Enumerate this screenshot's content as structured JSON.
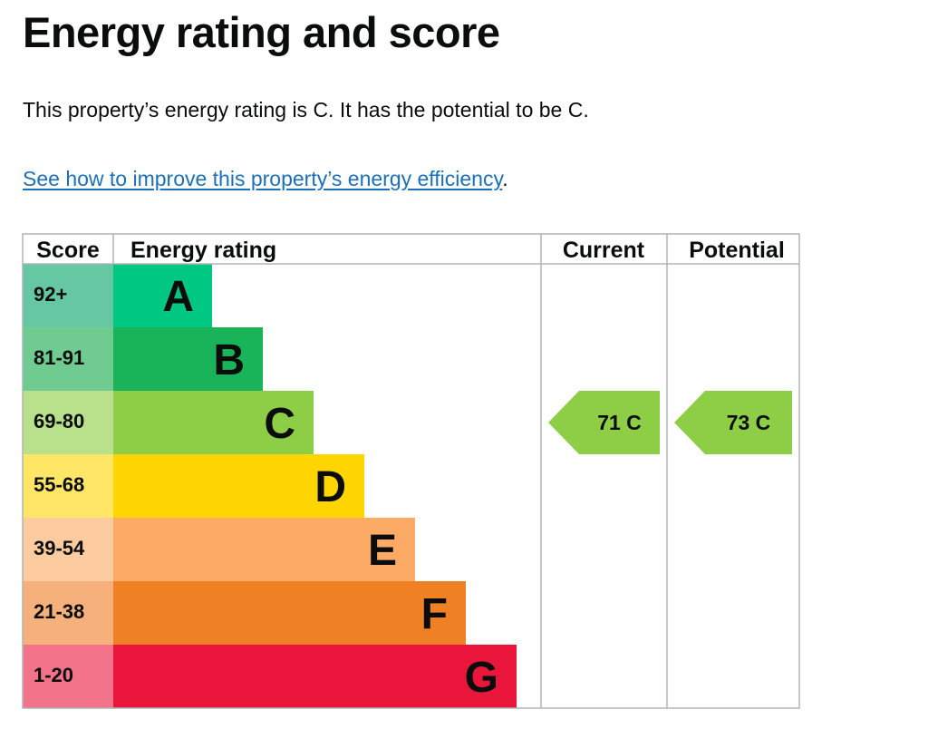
{
  "page": {
    "title": "Energy rating and score",
    "summary": "This property’s energy rating is C. It has the potential to be C.",
    "link_text": "See how to improve this property’s energy efficiency",
    "link_suffix": "."
  },
  "chart_data": {
    "type": "bar",
    "headers": {
      "score": "Score",
      "rating": "Energy rating",
      "current": "Current",
      "potential": "Potential"
    },
    "bands": [
      {
        "letter": "A",
        "score_range": "92+",
        "color": "#00c781",
        "score_color": "#66c7a3"
      },
      {
        "letter": "B",
        "score_range": "81-91",
        "color": "#19b459",
        "score_color": "#6fcb8f"
      },
      {
        "letter": "C",
        "score_range": "69-80",
        "color": "#8dce46",
        "score_color": "#b9e18c"
      },
      {
        "letter": "D",
        "score_range": "55-68",
        "color": "#ffd500",
        "score_color": "#ffe666"
      },
      {
        "letter": "E",
        "score_range": "39-54",
        "color": "#fcaa65",
        "score_color": "#fdcba0"
      },
      {
        "letter": "F",
        "score_range": "21-38",
        "color": "#ef8023",
        "score_color": "#f5b07b"
      },
      {
        "letter": "G",
        "score_range": "1-20",
        "color": "#e9153b",
        "score_color": "#f27389"
      }
    ],
    "current": {
      "score": 71,
      "band": "C",
      "label": "71 C"
    },
    "potential": {
      "score": 73,
      "band": "C",
      "label": "73 C"
    }
  }
}
